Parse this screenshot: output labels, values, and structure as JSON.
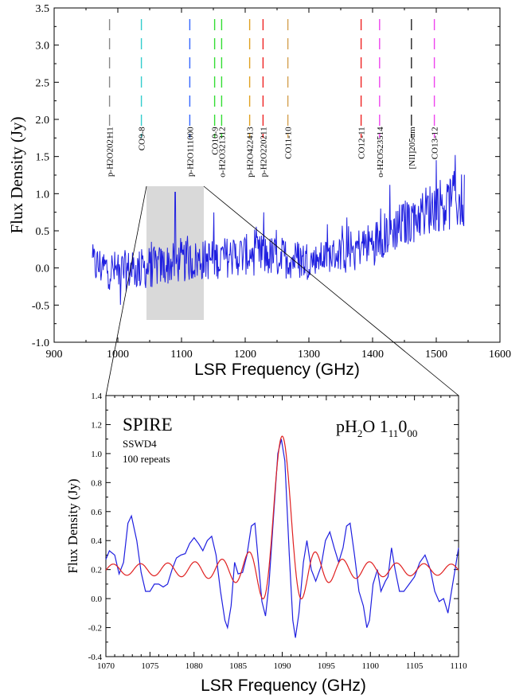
{
  "chart_data": [
    {
      "type": "line",
      "xlabel": "LSR Frequency (GHz)",
      "ylabel": "Flux Density (Jy)",
      "xlim": [
        900,
        1600
      ],
      "ylim": [
        -1.0,
        3.5
      ],
      "xticks": [
        "900",
        "1000",
        "1100",
        "1200",
        "1300",
        "1400",
        "1500",
        "1600"
      ],
      "yticks": [
        "-1.0",
        "-0.5",
        "0.0",
        "0.5",
        "1.0",
        "1.5",
        "2.0",
        "2.5",
        "3.0",
        "3.5"
      ],
      "grid": false,
      "line_color": "#1f1fe0",
      "spectrum_range": [
        960,
        1545
      ],
      "baseline_trend": [
        {
          "x": 960,
          "y": 0.05
        },
        {
          "x": 1000,
          "y": -0.05
        },
        {
          "x": 1050,
          "y": 0.0
        },
        {
          "x": 1100,
          "y": 0.08
        },
        {
          "x": 1150,
          "y": 0.12
        },
        {
          "x": 1200,
          "y": 0.18
        },
        {
          "x": 1250,
          "y": 0.15
        },
        {
          "x": 1300,
          "y": 0.1
        },
        {
          "x": 1350,
          "y": 0.2
        },
        {
          "x": 1400,
          "y": 0.35
        },
        {
          "x": 1450,
          "y": 0.6
        },
        {
          "x": 1500,
          "y": 0.85
        },
        {
          "x": 1545,
          "y": 0.9
        }
      ],
      "peaks": [
        {
          "x": 1090,
          "y": 1.02
        },
        {
          "x": 1229,
          "y": 0.75
        },
        {
          "x": 1413,
          "y": 0.8
        },
        {
          "x": 1500,
          "y": 1.45
        },
        {
          "x": 1530,
          "y": 1.52
        }
      ],
      "highlight_region": {
        "x": [
          1045,
          1135
        ],
        "y": [
          -0.7,
          1.1
        ],
        "color": "#d9d9d9"
      },
      "lines": [
        {
          "label": "p-H2O202111",
          "x": 987,
          "color": "#888888"
        },
        {
          "label": "CO9-8",
          "x": 1037,
          "color": "#33cccc"
        },
        {
          "label": "p-H2O111000",
          "x": 1113,
          "color": "#3366ff"
        },
        {
          "label": "CO10-9",
          "x": 1152,
          "color": "#33dd33"
        },
        {
          "label": "o-H2O321312",
          "x": 1163,
          "color": "#33dd33"
        },
        {
          "label": "p-H2O422413",
          "x": 1207,
          "color": "#e0a020"
        },
        {
          "label": "p-H2O220211",
          "x": 1228,
          "color": "#ee2222"
        },
        {
          "label": "CO11-10",
          "x": 1267,
          "color": "#d4a050"
        },
        {
          "label": "CO12-11",
          "x": 1382,
          "color": "#ee2222"
        },
        {
          "label": "o-H2O523514",
          "x": 1411,
          "color": "#ee44ee"
        },
        {
          "label": "[NII]205um",
          "x": 1461,
          "color": "#222222"
        },
        {
          "label": "CO13-12",
          "x": 1497,
          "color": "#ee44ee"
        }
      ]
    },
    {
      "type": "line",
      "xlabel": "LSR Frequency (GHz)",
      "ylabel": "Flux Density (Jy)",
      "xlim": [
        1070,
        1110
      ],
      "ylim": [
        -0.4,
        1.4
      ],
      "xticks": [
        "1070",
        "1075",
        "1080",
        "1085",
        "1090",
        "1095",
        "1100",
        "1105",
        "1110"
      ],
      "yticks": [
        "-0.4",
        "-0.2",
        "0.0",
        "0.2",
        "0.4",
        "0.6",
        "0.8",
        "1.0",
        "1.2",
        "1.4"
      ],
      "grid": false,
      "annotations": {
        "instrument": "SPIRE",
        "detector": "SSWD4",
        "repeats": "100 repeats",
        "line_base": "pH",
        "line_sub_2": "2",
        "line_o": "O 1",
        "line_sub_11": "11",
        "line_zero": "0",
        "line_sub_00": "00"
      },
      "series": [
        {
          "name": "",
          "color": "#1f1fe0",
          "points": [
            [
              1070.0,
              0.27
            ],
            [
              1070.4,
              0.33
            ],
            [
              1071.0,
              0.3
            ],
            [
              1071.5,
              0.17
            ],
            [
              1072.0,
              0.25
            ],
            [
              1072.5,
              0.52
            ],
            [
              1072.9,
              0.57
            ],
            [
              1073.5,
              0.4
            ],
            [
              1074.0,
              0.18
            ],
            [
              1074.5,
              0.05
            ],
            [
              1075.0,
              0.05
            ],
            [
              1075.5,
              0.1
            ],
            [
              1076.0,
              0.1
            ],
            [
              1076.5,
              0.08
            ],
            [
              1077.0,
              0.1
            ],
            [
              1077.5,
              0.2
            ],
            [
              1078.0,
              0.28
            ],
            [
              1078.5,
              0.3
            ],
            [
              1079.0,
              0.31
            ],
            [
              1079.5,
              0.38
            ],
            [
              1080.0,
              0.42
            ],
            [
              1080.5,
              0.38
            ],
            [
              1081.0,
              0.33
            ],
            [
              1081.5,
              0.4
            ],
            [
              1082.0,
              0.43
            ],
            [
              1082.5,
              0.3
            ],
            [
              1083.0,
              0.05
            ],
            [
              1083.5,
              -0.15
            ],
            [
              1083.8,
              -0.2
            ],
            [
              1084.2,
              -0.05
            ],
            [
              1084.6,
              0.25
            ],
            [
              1085.0,
              0.17
            ],
            [
              1085.5,
              0.18
            ],
            [
              1086.0,
              0.3
            ],
            [
              1086.5,
              0.5
            ],
            [
              1086.9,
              0.52
            ],
            [
              1087.3,
              0.25
            ],
            [
              1087.7,
              -0.02
            ],
            [
              1088.1,
              -0.12
            ],
            [
              1088.5,
              0.1
            ],
            [
              1089.0,
              0.55
            ],
            [
              1089.5,
              1.0
            ],
            [
              1089.9,
              1.1
            ],
            [
              1090.3,
              0.95
            ],
            [
              1090.8,
              0.3
            ],
            [
              1091.2,
              -0.15
            ],
            [
              1091.5,
              -0.27
            ],
            [
              1091.9,
              -0.1
            ],
            [
              1092.4,
              0.25
            ],
            [
              1092.8,
              0.4
            ],
            [
              1093.3,
              0.2
            ],
            [
              1093.8,
              0.12
            ],
            [
              1094.4,
              0.22
            ],
            [
              1094.9,
              0.4
            ],
            [
              1095.4,
              0.46
            ],
            [
              1095.9,
              0.35
            ],
            [
              1096.4,
              0.25
            ],
            [
              1096.9,
              0.35
            ],
            [
              1097.3,
              0.5
            ],
            [
              1097.7,
              0.52
            ],
            [
              1098.2,
              0.3
            ],
            [
              1098.7,
              0.05
            ],
            [
              1099.2,
              -0.05
            ],
            [
              1099.6,
              -0.2
            ],
            [
              1099.9,
              -0.15
            ],
            [
              1100.3,
              0.1
            ],
            [
              1100.8,
              0.2
            ],
            [
              1101.2,
              0.05
            ],
            [
              1101.7,
              0.12
            ],
            [
              1102.0,
              0.15
            ],
            [
              1102.4,
              0.35
            ],
            [
              1102.8,
              0.2
            ],
            [
              1103.3,
              0.05
            ],
            [
              1103.8,
              0.05
            ],
            [
              1104.4,
              0.1
            ],
            [
              1105.0,
              0.15
            ],
            [
              1105.6,
              0.25
            ],
            [
              1106.2,
              0.3
            ],
            [
              1106.8,
              0.2
            ],
            [
              1107.3,
              0.05
            ],
            [
              1107.8,
              -0.02
            ],
            [
              1108.3,
              0.0
            ],
            [
              1108.8,
              -0.1
            ],
            [
              1109.2,
              0.05
            ],
            [
              1109.6,
              0.2
            ],
            [
              1110.0,
              0.35
            ]
          ]
        },
        {
          "name": "",
          "color": "#e02020",
          "profile": {
            "center": 1090.0,
            "peak": 1.09,
            "offset": 0.2,
            "period": 1.57,
            "amp0": 0.89,
            "decay": 0.55
          }
        }
      ]
    }
  ]
}
